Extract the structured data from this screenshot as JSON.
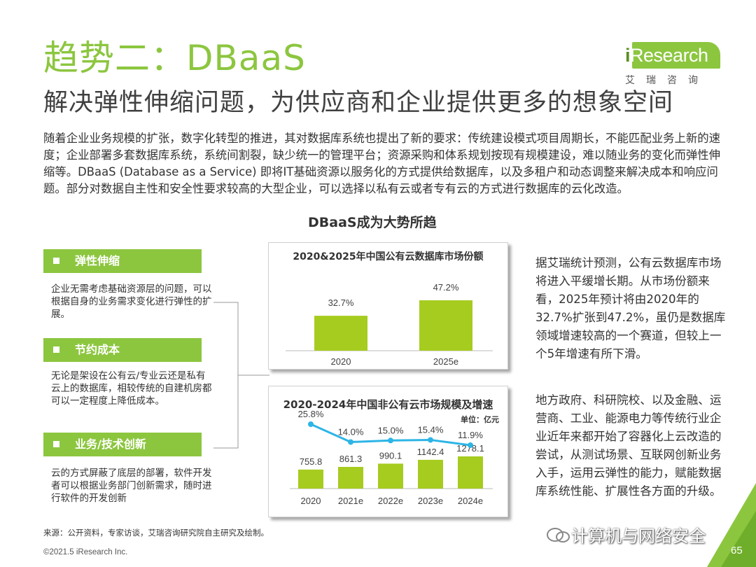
{
  "header": {
    "title": "趋势二：DBaaS",
    "subtitle": "解决弹性伸缩问题，为供应商和企业提供更多的想象空间"
  },
  "logo": {
    "brand_i": "i",
    "brand_rest": "Research",
    "cn": "艾瑞咨询"
  },
  "intro": "随着企业业务规模的扩张，数字化转型的推进，其对数据库系统也提出了新的要求：传统建设模式项目周期长，不能匹配业务上新的速度；企业部署多套数据库系统，系统间割裂，缺少统一的管理平台；资源采购和体系规划按现有规模建设，难以随业务的变化而弹性伸缩等。DBaaS (Database as a Service) 即将IT基础资源以服务化的方式提供给数据库，以及多租户和动态调整来解决成本和响应问题。部分对数据自主性和安全性要求较高的大型企业，可以选择以私有云或者专有云的方式进行数据库的云化改造。",
  "center_title": "DBaaS成为大势所趋",
  "features": [
    {
      "title": "弹性伸缩",
      "text": "企业无需考虑基础资源层的问题，可以根据自身的业务需求变化进行弹性的扩展。"
    },
    {
      "title": "节约成本",
      "text": "无论是架设在公有云/专业云还是私有云上的数据库，相较传统的自建机房都可以一定程度上降低成本。"
    },
    {
      "title": "业务/技术创新",
      "text": "云的方式屏蔽了底层的部署，软件开发者可以根据业务部门创新需求，随时进行软件的开发创新"
    }
  ],
  "chart_data": [
    {
      "type": "bar",
      "title": "2020&2025年中国公有云数据库市场份额",
      "categories": [
        "2020",
        "2025e"
      ],
      "values": [
        32.7,
        47.2
      ],
      "value_labels": [
        "32.7%",
        "47.2%"
      ],
      "color": "#a6cc1f"
    },
    {
      "type": "bar",
      "title": "2020-2024年中国非公有云市场规模及增速",
      "unit": "单位：亿元",
      "categories": [
        "2020",
        "2021e",
        "2022e",
        "2023e",
        "2024e"
      ],
      "series": [
        {
          "type": "bar",
          "values": [
            755.8,
            861.3,
            990.1,
            1142.4,
            1278.1
          ],
          "labels": [
            "755.8",
            "861.3",
            "990.1",
            "1142.4",
            "1278.1"
          ],
          "color": "#a6cc1f"
        },
        {
          "type": "line",
          "values": [
            25.8,
            14.0,
            15.0,
            15.4,
            11.9
          ],
          "labels": [
            "25.8%",
            "14.0%",
            "15.0%",
            "15.4%",
            "11.9%"
          ],
          "color": "#2db5e6"
        }
      ]
    }
  ],
  "right_paragraphs": [
    "据艾瑞统计预测，公有云数据库市场将进入平缓增长期。从市场份额来看，2025年预计将由2020年的32.7%扩张到47.2%，虽仍是数据库领域增速较高的一个赛道，但较上一个5年增速有所下滑。",
    "地方政府、科研院校、以及金融、运营商、工业、能源电力等传统行业企业近年来都开始了容器化上云改造的尝试，从测试场景、互联网创新业务入手，运用云弹性的能力，赋能数据库系统性能、扩展性各方面的升级。"
  ],
  "footer": {
    "source": "来源：公开资料，专家访谈，艾瑞咨询研究院自主研究及绘制。",
    "copyright": "©2021.5 iResearch Inc.",
    "page": "65",
    "watermark": "计算机与网络安全"
  },
  "colors": {
    "brand_green": "#8cc63f",
    "bar_green": "#a6cc1f",
    "line_blue": "#2db5e6"
  }
}
